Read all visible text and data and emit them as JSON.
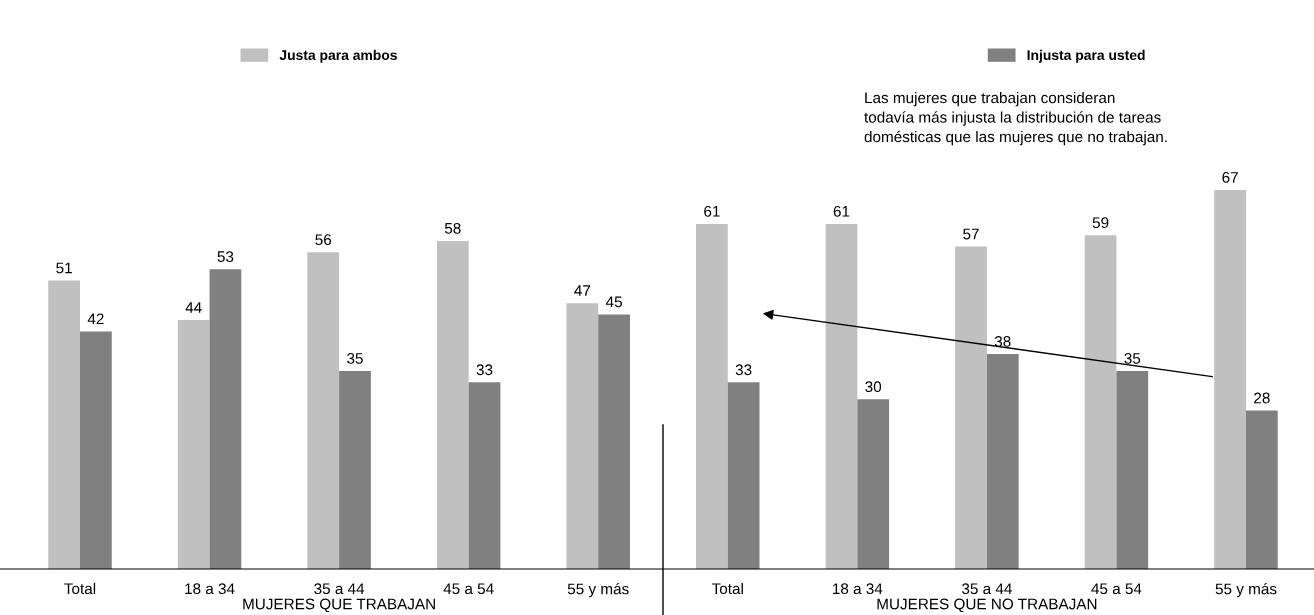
{
  "chart_data": {
    "type": "bar",
    "categories": [
      "Total",
      "18 a 34",
      "35 a 44",
      "45 a 54",
      "55 y más",
      "Total",
      "18 a 34",
      "35 a 44",
      "45 a 54",
      "55 y más"
    ],
    "series": [
      {
        "name": "Justa para ambos",
        "color": "#c0c0c0",
        "values": [
          51,
          44,
          56,
          58,
          47,
          61,
          61,
          57,
          59,
          67
        ]
      },
      {
        "name": "Injusta para usted",
        "color": "#808080",
        "values": [
          42,
          53,
          35,
          33,
          45,
          33,
          30,
          38,
          35,
          28
        ]
      }
    ],
    "data_labels": true,
    "legend": "top",
    "grid": false,
    "annotations": [
      "MUJERES QUE TRABAJAN",
      "MUJERES QUE NO TRABAJAN",
      "Las mujeres que trabajan consideran\ntodavía más injusta la distribución de tareas\ndomésticas que las mujeres que no trabajan."
    ]
  }
}
